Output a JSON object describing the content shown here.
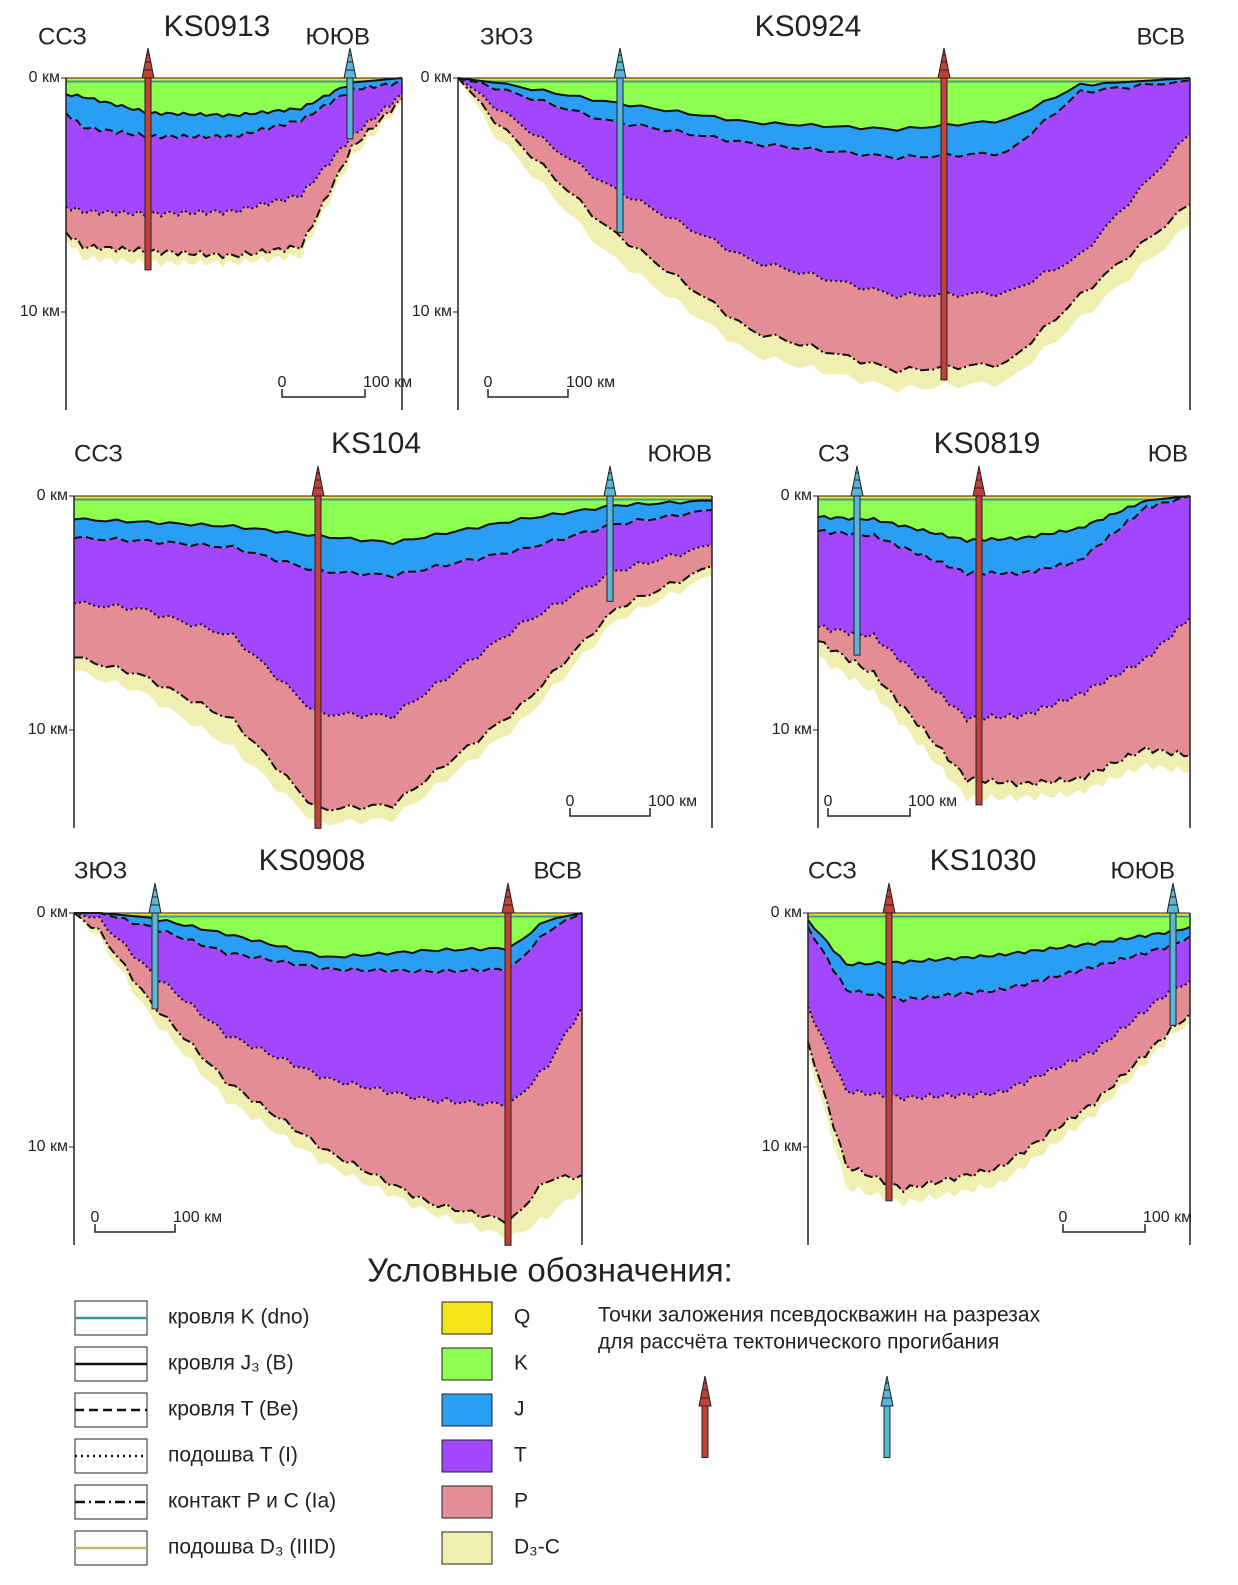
{
  "sections": [
    {
      "title": "KS0913",
      "left": "ССЗ",
      "right": "ЮЮВ",
      "depth_labels": [
        "0 км",
        "10 км"
      ],
      "scale_labels": [
        "0",
        "100 км"
      ]
    },
    {
      "title": "KS0924",
      "left": "ЗЮЗ",
      "right": "ВСВ",
      "depth_labels": [
        "0 км",
        "10 км"
      ],
      "scale_labels": [
        "0",
        "100 км"
      ]
    },
    {
      "title": "KS104",
      "left": "ССЗ",
      "right": "ЮЮВ",
      "depth_labels": [
        "0 км",
        "10 км"
      ],
      "scale_labels": [
        "0",
        "100 км"
      ]
    },
    {
      "title": "KS0819",
      "left": "СЗ",
      "right": "ЮВ",
      "depth_labels": [
        "0 км",
        "10 км"
      ],
      "scale_labels": [
        "0",
        "100 км"
      ]
    },
    {
      "title": "KS0908",
      "left": "ЗЮЗ",
      "right": "ВСВ",
      "depth_labels": [
        "0 км",
        "10 км"
      ],
      "scale_labels": [
        "0",
        "100 км"
      ]
    },
    {
      "title": "KS1030",
      "left": "ССЗ",
      "right": "ЮЮВ",
      "depth_labels": [
        "0 км",
        "10 км"
      ],
      "scale_labels": [
        "0",
        "100 км"
      ]
    }
  ],
  "legend": {
    "title": "Условные обозначения:",
    "lines": [
      "кровля K (dno)",
      "кровля J₃ (B)",
      "кровля T (Be)",
      "подошва T (I)",
      "контакт P и C (Ia)",
      "подошва D₃ (IIID)"
    ],
    "units": [
      "Q",
      "K",
      "J",
      "T",
      "P",
      "D₃-C"
    ],
    "wells_note": [
      "Точки заложения псевдоскважин на разрезах",
      "для рассчёта тектонического прогибания"
    ]
  }
}
